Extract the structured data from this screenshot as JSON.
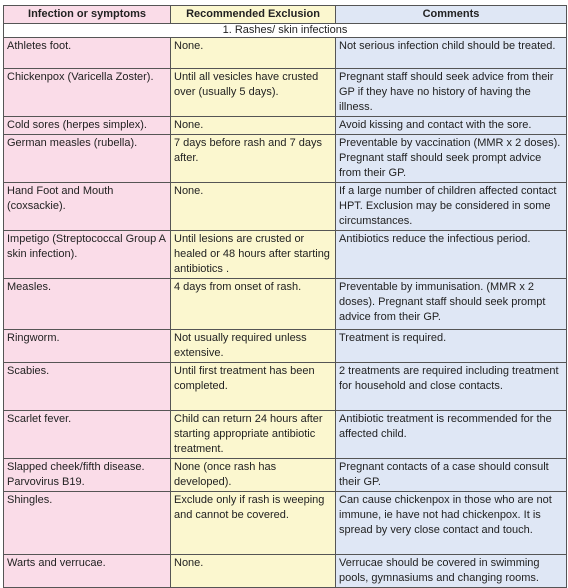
{
  "table": {
    "headers": [
      "Infection or symptoms",
      "Recommended Exclusion",
      "Comments"
    ],
    "section": "1. Rashes/ skin infections",
    "rows": [
      [
        "Athletes foot.",
        "None.",
        "Not serious infection child should be treated."
      ],
      [
        "Chickenpox (Varicella Zoster).",
        "Until all vesicles have crusted over (usually 5 days).",
        "Pregnant staff should seek advice from their GP if they have no history of having the illness."
      ],
      [
        "Cold sores (herpes simplex).",
        "None.",
        "Avoid kissing and contact with the sore."
      ],
      [
        "German measles (rubella).",
        "7 days before rash and 7 days after.",
        "Preventable by vaccination (MMR x 2 doses). Pregnant staff should seek prompt advice from their GP."
      ],
      [
        "Hand Foot and Mouth (coxsackie).",
        "None.",
        "If a large number of children affected contact HPT. Exclusion may be considered in some circumstances."
      ],
      [
        "Impetigo (Streptococcal Group A skin infection).",
        "Until lesions are crusted or healed or 48 hours after starting antibiotics .",
        "Antibiotics reduce the infectious period."
      ],
      [
        "Measles.",
        "4 days from onset of rash.",
        "Preventable by immunisation. (MMR x 2 doses). Pregnant staff should seek prompt advice from their GP."
      ],
      [
        "Ringworm.",
        "Not usually required unless extensive.",
        "Treatment is required."
      ],
      [
        "Scabies.",
        "Until first treatment has been completed.",
        "2 treatments are required including treatment for household and close contacts."
      ],
      [
        "Scarlet fever.",
        "Child can return 24 hours after starting appropriate antibiotic treatment.",
        "Antibiotic treatment is recommended for the affected child."
      ],
      [
        "Slapped cheek/fifth disease. Parvovirus B19.",
        "None (once rash has developed).",
        "Pregnant contacts of a case should consult their GP."
      ],
      [
        "Shingles.",
        "Exclude only if rash is weeping and cannot be covered.",
        "Can cause chickenpox in those who are not immune, ie have not had chickenpox. It is spread by very close contact and touch."
      ],
      [
        "Warts and verrucae.",
        "None.",
        "Verrucae should be covered in swimming pools, gymnasiums and changing rooms."
      ]
    ]
  }
}
